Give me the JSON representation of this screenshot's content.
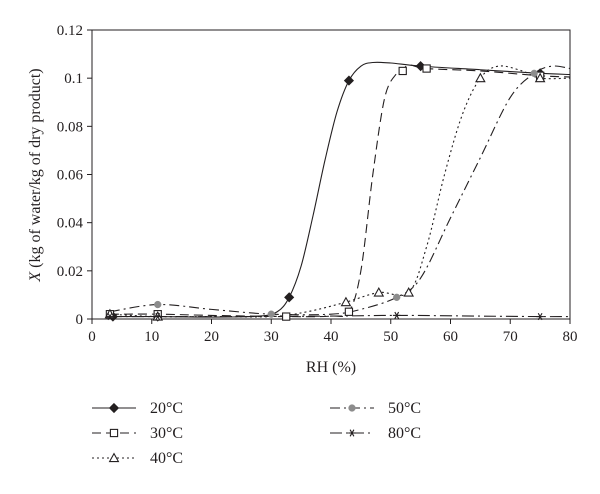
{
  "chart_data": {
    "type": "line",
    "title": "",
    "xlabel": "RH (%)",
    "ylabel_italic": "X",
    "ylabel_rest": " (kg of water/kg of dry product)",
    "xlim": [
      0,
      80
    ],
    "ylim": [
      0,
      0.12
    ],
    "x_ticks": [
      0,
      10,
      20,
      30,
      40,
      50,
      60,
      70,
      80
    ],
    "x_tick_labels": [
      "0",
      "10",
      "20",
      "30",
      "40",
      "50",
      "60",
      "70",
      "80"
    ],
    "y_ticks": [
      0,
      0.02,
      0.04,
      0.06,
      0.08,
      0.1,
      0.12
    ],
    "y_tick_labels": [
      "0",
      "0.02",
      "0.04",
      "0.06",
      "0.08",
      "0.1",
      "0.12"
    ],
    "grid": false,
    "legend_position": "bottom",
    "series": [
      {
        "name": "20°C",
        "color": "#231f20",
        "dash": "none",
        "marker": "diamond",
        "points": [
          [
            3.5,
            0.001
          ],
          [
            11,
            0.001
          ],
          [
            33,
            0.009
          ],
          [
            43,
            0.099
          ],
          [
            55,
            0.105
          ],
          [
            75,
            0.102
          ]
        ],
        "curve": [
          [
            3.5,
            0.001
          ],
          [
            11,
            0.001
          ],
          [
            20,
            0.0008
          ],
          [
            28,
            0.0012
          ],
          [
            31,
            0.003
          ],
          [
            33,
            0.009
          ],
          [
            35,
            0.022
          ],
          [
            37,
            0.043
          ],
          [
            39,
            0.066
          ],
          [
            41,
            0.086
          ],
          [
            43,
            0.099
          ],
          [
            45,
            0.105
          ],
          [
            47,
            0.1065
          ],
          [
            50,
            0.1063
          ],
          [
            55,
            0.105
          ],
          [
            65,
            0.1035
          ],
          [
            75,
            0.102
          ],
          [
            80,
            0.1015
          ]
        ]
      },
      {
        "name": "30°C",
        "color": "#231f20",
        "dash": "9 5",
        "marker": "square",
        "points": [
          [
            3,
            0.002
          ],
          [
            11,
            0.002
          ],
          [
            32.5,
            0.001
          ],
          [
            43,
            0.003
          ],
          [
            52,
            0.103
          ],
          [
            56,
            0.104
          ],
          [
            75,
            0.101
          ]
        ],
        "curve": [
          [
            3,
            0.002
          ],
          [
            11,
            0.002
          ],
          [
            20,
            0.0015
          ],
          [
            32.5,
            0.001
          ],
          [
            40,
            0.0012
          ],
          [
            43,
            0.003
          ],
          [
            45,
            0.02
          ],
          [
            47,
            0.06
          ],
          [
            49,
            0.092
          ],
          [
            51,
            0.102
          ],
          [
            52,
            0.103
          ],
          [
            53,
            0.1055
          ],
          [
            56,
            0.104
          ],
          [
            65,
            0.103
          ],
          [
            75,
            0.101
          ],
          [
            80,
            0.1005
          ]
        ]
      },
      {
        "name": "40°C",
        "color": "#231f20",
        "dash": "2 3",
        "marker": "triangle",
        "points": [
          [
            3,
            0.002
          ],
          [
            11,
            0.001
          ],
          [
            42.5,
            0.007
          ],
          [
            48,
            0.011
          ],
          [
            53,
            0.011
          ],
          [
            65,
            0.1
          ],
          [
            75,
            0.1
          ]
        ],
        "curve": [
          [
            3,
            0.002
          ],
          [
            11,
            0.001
          ],
          [
            20,
            0.001
          ],
          [
            30,
            0.001
          ],
          [
            36,
            0.003
          ],
          [
            42.5,
            0.007
          ],
          [
            48,
            0.011
          ],
          [
            53,
            0.011
          ],
          [
            56,
            0.03
          ],
          [
            59,
            0.06
          ],
          [
            62,
            0.085
          ],
          [
            65,
            0.1
          ],
          [
            68,
            0.105
          ],
          [
            72,
            0.103
          ],
          [
            75,
            0.1
          ],
          [
            80,
            0.1
          ]
        ]
      },
      {
        "name": "50°C",
        "color": "#231f20",
        "marker_color": "#8c8c8c",
        "dash": "10 4 2 4",
        "marker": "circle",
        "points": [
          [
            11,
            0.006
          ],
          [
            30,
            0.002
          ],
          [
            51,
            0.009
          ],
          [
            74,
            0.102
          ]
        ],
        "curve": [
          [
            3,
            0.003
          ],
          [
            11,
            0.006
          ],
          [
            20,
            0.004
          ],
          [
            30,
            0.002
          ],
          [
            40,
            0.002
          ],
          [
            45,
            0.004
          ],
          [
            51,
            0.009
          ],
          [
            55,
            0.017
          ],
          [
            60,
            0.042
          ],
          [
            65,
            0.067
          ],
          [
            70,
            0.092
          ],
          [
            74,
            0.102
          ],
          [
            77,
            0.105
          ],
          [
            80,
            0.104
          ]
        ]
      },
      {
        "name": "80°C",
        "color": "#231f20",
        "dash": "12 4 2 4",
        "marker": "asterisk",
        "points": [
          [
            3,
            0.001
          ],
          [
            11,
            0.001
          ],
          [
            51,
            0.0015
          ],
          [
            75,
            0.001
          ]
        ],
        "curve": [
          [
            3,
            0.001
          ],
          [
            11,
            0.001
          ],
          [
            25,
            0.001
          ],
          [
            40,
            0.0012
          ],
          [
            51,
            0.0015
          ],
          [
            65,
            0.0012
          ],
          [
            75,
            0.001
          ],
          [
            80,
            0.001
          ]
        ]
      }
    ]
  }
}
